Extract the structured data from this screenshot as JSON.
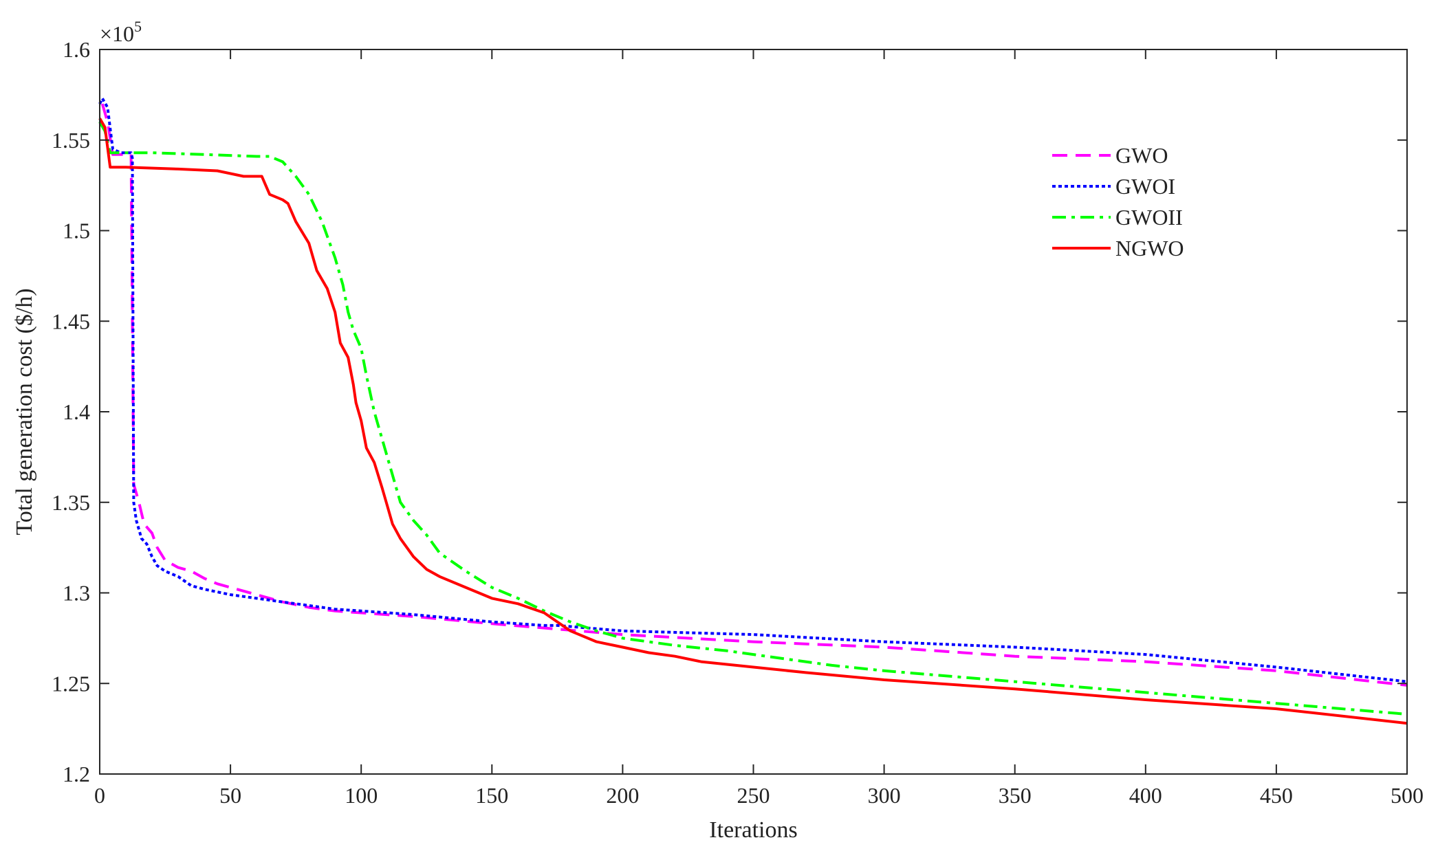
{
  "chart_data": {
    "type": "line",
    "title": "",
    "xlabel": "Iterations",
    "ylabel": "Total generation cost ($/h)",
    "y_exponent_label": "×10",
    "y_exponent_power": "5",
    "xlim": [
      0,
      500
    ],
    "ylim": [
      1.2,
      1.6
    ],
    "xticks": [
      0,
      50,
      100,
      150,
      200,
      250,
      300,
      350,
      400,
      450,
      500
    ],
    "yticks": [
      1.2,
      1.25,
      1.3,
      1.35,
      1.4,
      1.45,
      1.5,
      1.55,
      1.6
    ],
    "xtick_labels": [
      "0",
      "50",
      "100",
      "150",
      "200",
      "250",
      "300",
      "350",
      "400",
      "450",
      "500"
    ],
    "ytick_labels": [
      "1.2",
      "1.25",
      "1.3",
      "1.35",
      "1.4",
      "1.45",
      "1.5",
      "1.55",
      "1.6"
    ],
    "grid": false,
    "legend_position": "top-right",
    "series": [
      {
        "name": "GWO",
        "color": "#ff00ff",
        "dash": "dashed",
        "points": [
          [
            1,
            1.57
          ],
          [
            3,
            1.56
          ],
          [
            5,
            1.542
          ],
          [
            10,
            1.542
          ],
          [
            12,
            1.542
          ],
          [
            13,
            1.36
          ],
          [
            15,
            1.35
          ],
          [
            17,
            1.338
          ],
          [
            20,
            1.333
          ],
          [
            22,
            1.325
          ],
          [
            25,
            1.318
          ],
          [
            30,
            1.314
          ],
          [
            35,
            1.312
          ],
          [
            40,
            1.308
          ],
          [
            45,
            1.305
          ],
          [
            50,
            1.303
          ],
          [
            60,
            1.299
          ],
          [
            70,
            1.295
          ],
          [
            80,
            1.292
          ],
          [
            90,
            1.29
          ],
          [
            100,
            1.289
          ],
          [
            120,
            1.287
          ],
          [
            150,
            1.283
          ],
          [
            175,
            1.28
          ],
          [
            200,
            1.277
          ],
          [
            250,
            1.273
          ],
          [
            300,
            1.27
          ],
          [
            350,
            1.265
          ],
          [
            400,
            1.262
          ],
          [
            450,
            1.257
          ],
          [
            500,
            1.249
          ]
        ]
      },
      {
        "name": "GWOI",
        "color": "#0000ff",
        "dash": "dotted",
        "points": [
          [
            0,
            1.57
          ],
          [
            1,
            1.573
          ],
          [
            3,
            1.568
          ],
          [
            5,
            1.545
          ],
          [
            8,
            1.543
          ],
          [
            11,
            1.543
          ],
          [
            12,
            1.543
          ],
          [
            12.5,
            1.54
          ],
          [
            13,
            1.35
          ],
          [
            14,
            1.34
          ],
          [
            16,
            1.33
          ],
          [
            18,
            1.327
          ],
          [
            20,
            1.32
          ],
          [
            22,
            1.315
          ],
          [
            25,
            1.312
          ],
          [
            30,
            1.309
          ],
          [
            35,
            1.304
          ],
          [
            40,
            1.302
          ],
          [
            50,
            1.299
          ],
          [
            60,
            1.297
          ],
          [
            70,
            1.295
          ],
          [
            80,
            1.293
          ],
          [
            90,
            1.291
          ],
          [
            100,
            1.29
          ],
          [
            120,
            1.288
          ],
          [
            150,
            1.284
          ],
          [
            170,
            1.282
          ],
          [
            175,
            1.282
          ],
          [
            200,
            1.279
          ],
          [
            250,
            1.277
          ],
          [
            300,
            1.273
          ],
          [
            350,
            1.27
          ],
          [
            400,
            1.266
          ],
          [
            450,
            1.259
          ],
          [
            500,
            1.251
          ]
        ]
      },
      {
        "name": "GWOII",
        "color": "#00ff00",
        "dash": "dashdot",
        "points": [
          [
            0,
            1.56
          ],
          [
            2,
            1.555
          ],
          [
            4,
            1.543
          ],
          [
            10,
            1.543
          ],
          [
            20,
            1.543
          ],
          [
            40,
            1.542
          ],
          [
            60,
            1.541
          ],
          [
            65,
            1.541
          ],
          [
            70,
            1.538
          ],
          [
            75,
            1.53
          ],
          [
            80,
            1.52
          ],
          [
            85,
            1.505
          ],
          [
            90,
            1.485
          ],
          [
            93,
            1.47
          ],
          [
            95,
            1.455
          ],
          [
            97,
            1.445
          ],
          [
            100,
            1.435
          ],
          [
            102,
            1.42
          ],
          [
            105,
            1.4
          ],
          [
            108,
            1.385
          ],
          [
            110,
            1.375
          ],
          [
            113,
            1.36
          ],
          [
            115,
            1.35
          ],
          [
            120,
            1.34
          ],
          [
            125,
            1.332
          ],
          [
            130,
            1.322
          ],
          [
            140,
            1.312
          ],
          [
            150,
            1.303
          ],
          [
            160,
            1.297
          ],
          [
            170,
            1.29
          ],
          [
            180,
            1.284
          ],
          [
            190,
            1.279
          ],
          [
            200,
            1.275
          ],
          [
            220,
            1.271
          ],
          [
            240,
            1.268
          ],
          [
            250,
            1.266
          ],
          [
            260,
            1.264
          ],
          [
            270,
            1.262
          ],
          [
            280,
            1.26
          ],
          [
            300,
            1.257
          ],
          [
            350,
            1.251
          ],
          [
            400,
            1.245
          ],
          [
            450,
            1.239
          ],
          [
            500,
            1.233
          ]
        ]
      },
      {
        "name": "NGWO",
        "color": "#ff0000",
        "dash": "solid",
        "points": [
          [
            0,
            1.562
          ],
          [
            2,
            1.557
          ],
          [
            4,
            1.535
          ],
          [
            10,
            1.535
          ],
          [
            30,
            1.534
          ],
          [
            45,
            1.533
          ],
          [
            55,
            1.53
          ],
          [
            62,
            1.53
          ],
          [
            65,
            1.52
          ],
          [
            70,
            1.517
          ],
          [
            72,
            1.515
          ],
          [
            75,
            1.505
          ],
          [
            80,
            1.493
          ],
          [
            83,
            1.478
          ],
          [
            87,
            1.468
          ],
          [
            90,
            1.455
          ],
          [
            92,
            1.438
          ],
          [
            95,
            1.43
          ],
          [
            97,
            1.415
          ],
          [
            98,
            1.405
          ],
          [
            100,
            1.395
          ],
          [
            102,
            1.38
          ],
          [
            105,
            1.372
          ],
          [
            108,
            1.358
          ],
          [
            110,
            1.348
          ],
          [
            112,
            1.338
          ],
          [
            115,
            1.33
          ],
          [
            120,
            1.32
          ],
          [
            125,
            1.313
          ],
          [
            130,
            1.309
          ],
          [
            140,
            1.303
          ],
          [
            150,
            1.297
          ],
          [
            160,
            1.294
          ],
          [
            170,
            1.289
          ],
          [
            180,
            1.279
          ],
          [
            190,
            1.273
          ],
          [
            200,
            1.27
          ],
          [
            210,
            1.267
          ],
          [
            220,
            1.265
          ],
          [
            230,
            1.262
          ],
          [
            250,
            1.259
          ],
          [
            270,
            1.256
          ],
          [
            300,
            1.252
          ],
          [
            350,
            1.247
          ],
          [
            400,
            1.241
          ],
          [
            450,
            1.236
          ],
          [
            500,
            1.228
          ]
        ]
      }
    ]
  }
}
